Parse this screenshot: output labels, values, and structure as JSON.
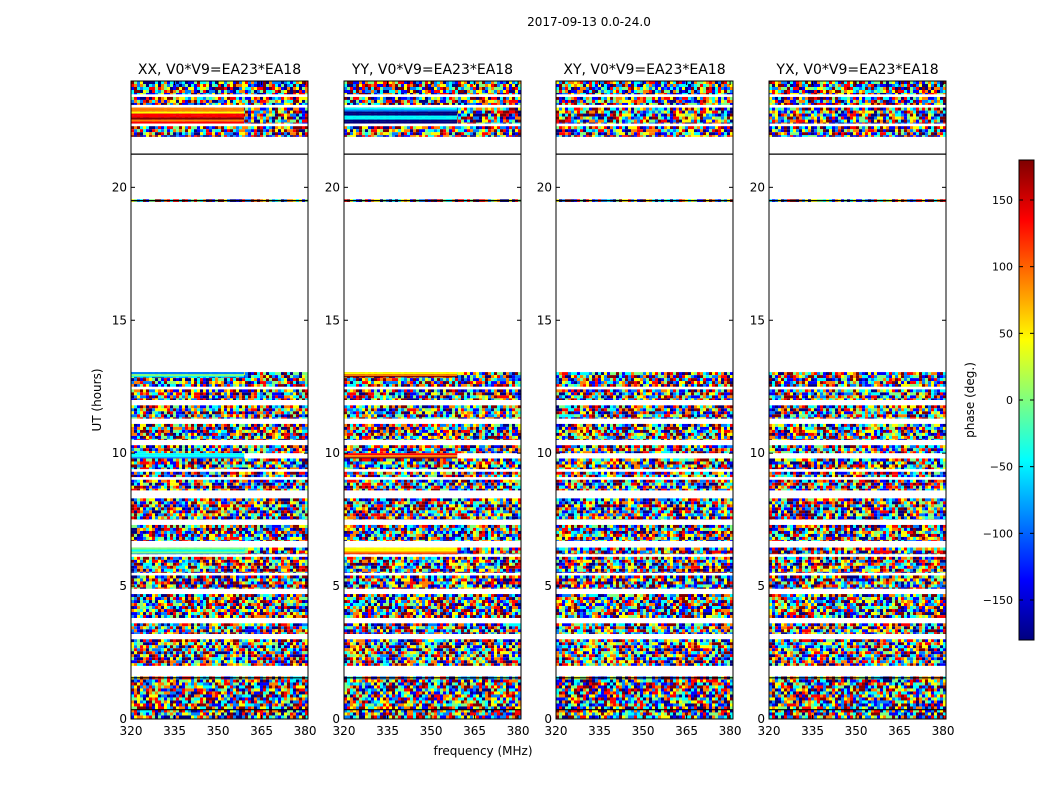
{
  "suptitle": "2017-09-13 0.0-24.0",
  "colors": {
    "jet": [
      "#00007f",
      "#0000ff",
      "#007fff",
      "#00ffff",
      "#7fff7f",
      "#ffff00",
      "#ff7f00",
      "#ff0000",
      "#7f0000"
    ],
    "blank": "#ffffff",
    "frame": "#000000"
  },
  "chart_data": {
    "type": "heatmap",
    "xlabel": "frequency (MHz)",
    "ylabel": "UT (hours)",
    "xlim": [
      320,
      381
    ],
    "ylim": [
      0,
      24
    ],
    "xticks": [
      320,
      335,
      350,
      365,
      380
    ],
    "yticks": [
      0,
      5,
      10,
      15,
      20
    ],
    "grid": false,
    "panels": [
      {
        "title": "XX, V0*V9=EA23*EA18",
        "coherent": {
          "top_band": "warm",
          "band_6h": "cyan",
          "band_10h": "cyan",
          "band_13h": "cyan"
        }
      },
      {
        "title": "YY, V0*V9=EA23*EA18",
        "coherent": {
          "top_band": "cool",
          "band_6h": "warm",
          "band_10h": "warm",
          "band_13h": "warm"
        }
      },
      {
        "title": "XY, V0*V9=EA23*EA18",
        "coherent": {}
      },
      {
        "title": "YX, V0*V9=EA23*EA18",
        "coherent": {}
      }
    ],
    "data_rows": [
      [
        0.0,
        1.6
      ],
      [
        2.0,
        3.0
      ],
      [
        3.2,
        3.6
      ],
      [
        3.8,
        4.7
      ],
      [
        4.9,
        5.4
      ],
      [
        5.5,
        6.1
      ],
      [
        6.2,
        6.45
      ],
      [
        6.7,
        7.3
      ],
      [
        7.5,
        8.3
      ],
      [
        8.6,
        9.0
      ],
      [
        9.1,
        9.3
      ],
      [
        9.4,
        9.8
      ],
      [
        10.0,
        10.3
      ],
      [
        10.5,
        11.1
      ],
      [
        11.3,
        11.8
      ],
      [
        12.0,
        12.4
      ],
      [
        12.5,
        13.05
      ],
      [
        19.45,
        19.55
      ],
      [
        21.9,
        22.3
      ],
      [
        22.4,
        23.0
      ],
      [
        23.1,
        23.4
      ],
      [
        23.5,
        24.0
      ]
    ],
    "colorbar": {
      "label": "phase (deg.)",
      "range": [
        -180,
        180
      ],
      "ticks": [
        -150,
        -100,
        -50,
        0,
        50,
        100,
        150
      ],
      "tick_labels": [
        "−150",
        "−100",
        "−50",
        "0",
        "50",
        "100",
        "150"
      ]
    }
  }
}
